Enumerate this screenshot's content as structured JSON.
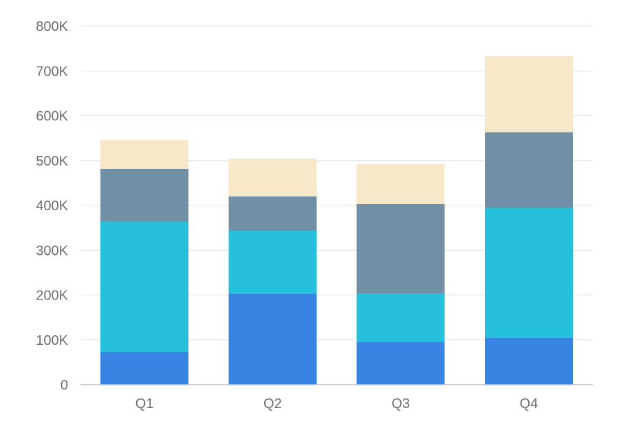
{
  "chart_data": {
    "type": "bar",
    "stacked": true,
    "categories": [
      "Q1",
      "Q2",
      "Q3",
      "Q4"
    ],
    "series": [
      {
        "color": "#3784e3",
        "values": [
          73,
          202,
          95,
          104
        ]
      },
      {
        "color": "#27c0dc",
        "values": [
          291,
          141,
          109,
          291
        ]
      },
      {
        "color": "#718fa5",
        "values": [
          117,
          77,
          199,
          168
        ]
      },
      {
        "color": "#f6e8c8",
        "values": [
          65,
          84,
          89,
          170
        ]
      }
    ],
    "ylim": [
      0,
      800
    ],
    "yticks": [
      {
        "value": 0,
        "label": "0"
      },
      {
        "value": 100,
        "label": "100K"
      },
      {
        "value": 200,
        "label": "200K"
      },
      {
        "value": 300,
        "label": "300K"
      },
      {
        "value": 400,
        "label": "400K"
      },
      {
        "value": 500,
        "label": "500K"
      },
      {
        "value": 600,
        "label": "600K"
      },
      {
        "value": 700,
        "label": "700K"
      },
      {
        "value": 800,
        "label": "800K"
      }
    ],
    "grid": true,
    "legend": "none",
    "title": "",
    "xlabel": "",
    "ylabel": ""
  }
}
